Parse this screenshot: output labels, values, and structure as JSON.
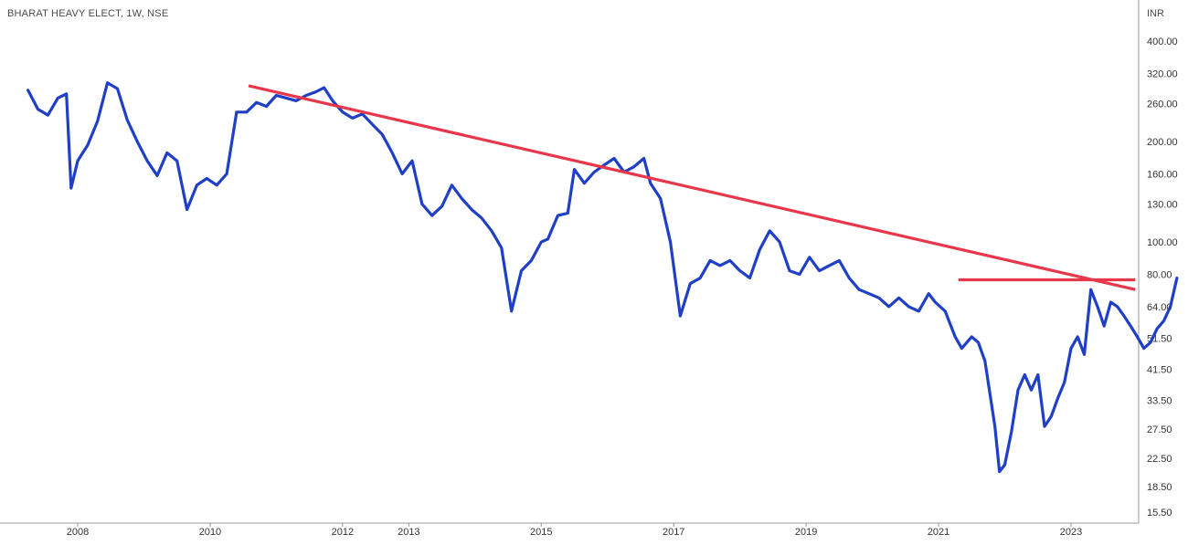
{
  "header": {
    "title": "BHARAT HEAVY ELECT, 1W, NSE",
    "currency": "INR"
  },
  "chart_data": {
    "type": "line",
    "title": "BHARAT HEAVY ELECT, 1W, NSE",
    "ylabel": "INR",
    "yscale": "log",
    "ylim": [
      14.5,
      470
    ],
    "xlim": [
      2007.2,
      2024.0
    ],
    "grid": false,
    "y_ticks": [
      "400.00",
      "320.00",
      "260.00",
      "200.00",
      "160.00",
      "130.00",
      "100.00",
      "80.00",
      "64.00",
      "51.50",
      "41.50",
      "33.50",
      "27.50",
      "22.50",
      "18.50",
      "15.50"
    ],
    "x_ticks": [
      "2008",
      "2010",
      "2012",
      "2013",
      "2015",
      "2017",
      "2019",
      "2021",
      "2023"
    ],
    "colors": {
      "price": "#1f3fc6",
      "trendline": "#e8364a"
    },
    "series": [
      {
        "values": [
          [
            2007.25,
            285
          ],
          [
            2007.4,
            250
          ],
          [
            2007.55,
            240
          ],
          [
            2007.7,
            270
          ],
          [
            2007.83,
            278
          ],
          [
            2007.9,
            145
          ],
          [
            2008.0,
            175
          ],
          [
            2008.15,
            195
          ],
          [
            2008.3,
            230
          ],
          [
            2008.45,
            300
          ],
          [
            2008.6,
            288
          ],
          [
            2008.75,
            232
          ],
          [
            2008.9,
            200
          ],
          [
            2009.05,
            175
          ],
          [
            2009.2,
            158
          ],
          [
            2009.35,
            185
          ],
          [
            2009.5,
            175
          ],
          [
            2009.65,
            125
          ],
          [
            2009.8,
            148
          ],
          [
            2009.95,
            155
          ],
          [
            2010.1,
            148
          ],
          [
            2010.25,
            160
          ],
          [
            2010.4,
            245
          ],
          [
            2010.55,
            245
          ],
          [
            2010.7,
            262
          ],
          [
            2010.85,
            255
          ],
          [
            2011.0,
            275
          ],
          [
            2011.15,
            270
          ],
          [
            2011.3,
            265
          ],
          [
            2011.45,
            275
          ],
          [
            2011.6,
            282
          ],
          [
            2011.72,
            290
          ],
          [
            2011.85,
            265
          ],
          [
            2012.0,
            245
          ],
          [
            2012.15,
            235
          ],
          [
            2012.3,
            242
          ],
          [
            2012.45,
            225
          ],
          [
            2012.6,
            210
          ],
          [
            2012.75,
            185
          ],
          [
            2012.9,
            160
          ],
          [
            2013.05,
            175
          ],
          [
            2013.2,
            130
          ],
          [
            2013.35,
            120
          ],
          [
            2013.5,
            128
          ],
          [
            2013.65,
            148
          ],
          [
            2013.8,
            135
          ],
          [
            2013.95,
            125
          ],
          [
            2014.1,
            118
          ],
          [
            2014.25,
            108
          ],
          [
            2014.4,
            96
          ],
          [
            2014.55,
            62
          ],
          [
            2014.7,
            82
          ],
          [
            2014.85,
            88
          ],
          [
            2015.0,
            100
          ],
          [
            2015.1,
            102
          ],
          [
            2015.25,
            120
          ],
          [
            2015.4,
            122
          ],
          [
            2015.5,
            165
          ],
          [
            2015.65,
            150
          ],
          [
            2015.8,
            162
          ],
          [
            2015.95,
            170
          ],
          [
            2016.1,
            178
          ],
          [
            2016.25,
            162
          ],
          [
            2016.4,
            168
          ],
          [
            2016.55,
            178
          ],
          [
            2016.65,
            150
          ],
          [
            2016.8,
            135
          ],
          [
            2016.95,
            100
          ],
          [
            2017.1,
            60
          ],
          [
            2017.25,
            75
          ],
          [
            2017.4,
            78
          ],
          [
            2017.55,
            88
          ],
          [
            2017.7,
            85
          ],
          [
            2017.85,
            88
          ],
          [
            2018.0,
            82
          ],
          [
            2018.15,
            78
          ],
          [
            2018.3,
            95
          ],
          [
            2018.45,
            108
          ],
          [
            2018.6,
            100
          ],
          [
            2018.75,
            82
          ],
          [
            2018.9,
            80
          ],
          [
            2019.05,
            90
          ],
          [
            2019.2,
            82
          ],
          [
            2019.35,
            85
          ],
          [
            2019.5,
            88
          ],
          [
            2019.65,
            78
          ],
          [
            2019.8,
            72
          ],
          [
            2019.95,
            70
          ],
          [
            2020.1,
            68
          ],
          [
            2020.25,
            64
          ],
          [
            2020.4,
            68
          ],
          [
            2020.55,
            64
          ],
          [
            2020.7,
            62
          ],
          [
            2020.85,
            70
          ],
          [
            2020.95,
            66
          ],
          [
            2021.1,
            62
          ],
          [
            2021.25,
            52
          ],
          [
            2021.35,
            48
          ],
          [
            2021.5,
            52
          ],
          [
            2021.6,
            50
          ],
          [
            2021.7,
            44
          ],
          [
            2021.85,
            28
          ],
          [
            2021.92,
            20.5
          ],
          [
            2022.0,
            21.5
          ],
          [
            2022.1,
            27
          ],
          [
            2022.2,
            36
          ],
          [
            2022.3,
            40
          ],
          [
            2022.4,
            36
          ],
          [
            2022.5,
            40
          ],
          [
            2022.6,
            28
          ],
          [
            2022.7,
            30
          ],
          [
            2022.8,
            34
          ],
          [
            2022.9,
            38
          ],
          [
            2023.0,
            48
          ],
          [
            2023.1,
            52
          ],
          [
            2023.2,
            46
          ],
          [
            2023.3,
            72
          ],
          [
            2023.4,
            64
          ],
          [
            2023.5,
            56
          ],
          [
            2023.6,
            66
          ],
          [
            2023.7,
            64
          ],
          [
            2023.8,
            60
          ],
          [
            2023.9,
            56
          ],
          [
            2024.0,
            52
          ],
          [
            2024.1,
            48
          ],
          [
            2024.2,
            50
          ],
          [
            2024.3,
            55
          ],
          [
            2024.4,
            58
          ],
          [
            2024.5,
            64
          ],
          [
            2024.6,
            78
          ]
        ]
      }
    ],
    "trendlines": [
      {
        "kind": "falling-resistance",
        "from": [
          2010.58,
          294
        ],
        "to": [
          2023.97,
          72
        ]
      },
      {
        "kind": "horizontal-resistance",
        "from": [
          2021.3,
          77
        ],
        "to": [
          2023.97,
          77
        ]
      }
    ]
  }
}
